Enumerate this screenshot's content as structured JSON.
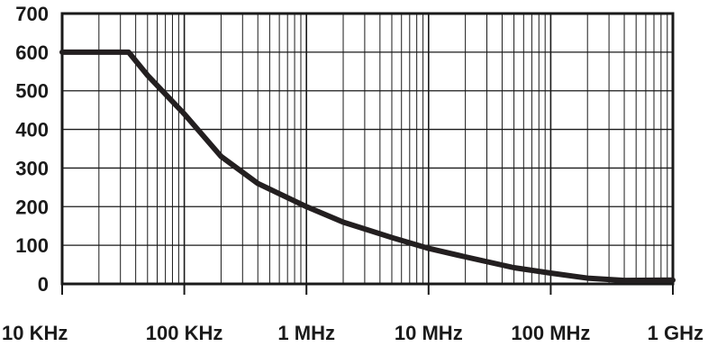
{
  "chart_data": {
    "type": "line",
    "title": "",
    "xlabel": "",
    "ylabel": "",
    "x_scale": "log",
    "xlim": [
      10000,
      1000000000
    ],
    "ylim": [
      0,
      700
    ],
    "grid": true,
    "x_ticks": [
      {
        "value": 10000,
        "label": "10 KHz"
      },
      {
        "value": 100000,
        "label": "100 KHz"
      },
      {
        "value": 1000000,
        "label": "1 MHz"
      },
      {
        "value": 10000000,
        "label": "10 MHz"
      },
      {
        "value": 100000000,
        "label": "100 MHz"
      },
      {
        "value": 1000000000,
        "label": "1 GHz"
      }
    ],
    "y_ticks": [
      {
        "value": 0,
        "label": "0"
      },
      {
        "value": 100,
        "label": "100"
      },
      {
        "value": 200,
        "label": "200"
      },
      {
        "value": 300,
        "label": "300"
      },
      {
        "value": 400,
        "label": "400"
      },
      {
        "value": 500,
        "label": "500"
      },
      {
        "value": 600,
        "label": "600"
      },
      {
        "value": 700,
        "label": "700"
      }
    ],
    "series": [
      {
        "points": [
          [
            10000,
            600
          ],
          [
            35000,
            600
          ],
          [
            50000,
            540
          ],
          [
            100000,
            440
          ],
          [
            200000,
            330
          ],
          [
            400000,
            260
          ],
          [
            1000000,
            200
          ],
          [
            2000000,
            160
          ],
          [
            5000000,
            120
          ],
          [
            10000000,
            92
          ],
          [
            20000000,
            70
          ],
          [
            50000000,
            42
          ],
          [
            100000000,
            28
          ],
          [
            200000000,
            15
          ],
          [
            400000000,
            9
          ],
          [
            1000000000,
            10
          ]
        ]
      }
    ],
    "colors": {
      "line": "#231f20",
      "grid": "#1a1a1a",
      "text": "#1a1a1a"
    }
  }
}
